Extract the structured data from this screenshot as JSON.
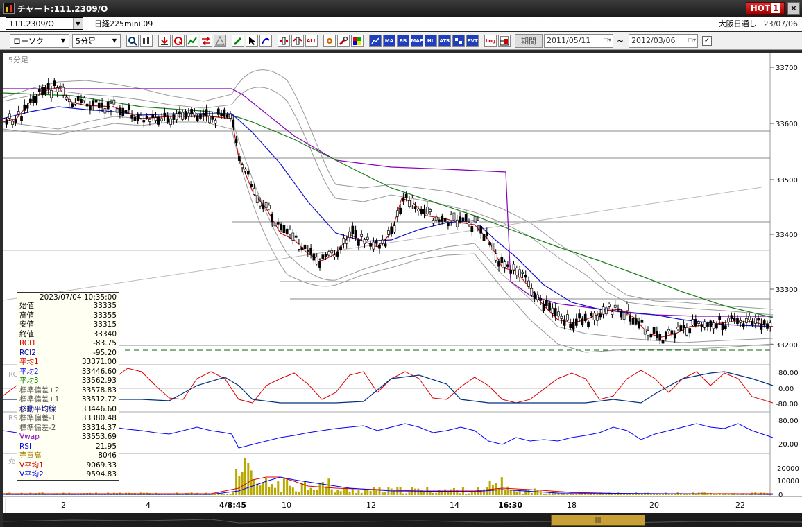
{
  "window": {
    "title": "チャート:111.2309/O",
    "hot_label": "HOT",
    "hot_number": "1",
    "close_glyph": "✕"
  },
  "header": {
    "symbol": "111.2309/O",
    "instrument": "日経225mini 09",
    "session": "大阪日通し",
    "date": "23/07/06"
  },
  "toolbar": {
    "chart_type": "ローソク",
    "interval": "5分足",
    "buttons": [
      "magnifier-icon",
      "bars-icon",
      "download-icon",
      "q-icon",
      "chart-icon",
      "arrows-icon",
      "pen-icon",
      "line-icon",
      "cursor-icon",
      "curve-icon",
      "zoom-in-icon",
      "zoom-out-icon",
      "ALL",
      "gear-icon",
      "wrench-icon",
      "palette-icon",
      "OP",
      "MA",
      "BB",
      "MAE",
      "HL",
      "ATR",
      "PV",
      "PVT",
      "Log",
      "layout-icon"
    ],
    "all_label": "ALL",
    "ma_label": "MA",
    "bb_label": "BB",
    "mae_label": "MAE",
    "hl_label": "HL",
    "atr_label": "ATR",
    "pvt_label": "PVT",
    "log_label": "Log",
    "period_label": "期間",
    "date_from": "2011/05/11",
    "date_to": "2012/03/06",
    "tilde": "~"
  },
  "chart": {
    "interval_label": "5分足",
    "price_ticks": [
      "33700",
      "33600",
      "33500",
      "33400",
      "33300",
      "33200"
    ],
    "osc_ticks": [
      "80.00",
      "0.00",
      "-80.00"
    ],
    "rsi_ticks": [
      "80.00",
      "20.00"
    ],
    "vol_ticks": [
      "20000",
      "10000",
      "0"
    ],
    "x_labels": [
      "2",
      "4",
      "4/8:45",
      "10",
      "12",
      "14",
      "16:30",
      "18",
      "20",
      "22"
    ],
    "osc_label": "RCI",
    "rsi_label": "RSI",
    "vol_label": "売"
  },
  "data_panel": {
    "datetime": "2023/07/04  10:35:00",
    "rows": [
      {
        "label": "始値",
        "value": "33335",
        "color": "#000000"
      },
      {
        "label": "高値",
        "value": "33355",
        "color": "#000000"
      },
      {
        "label": "安値",
        "value": "33315",
        "color": "#000000"
      },
      {
        "label": "終値",
        "value": "33340",
        "color": "#000000"
      },
      {
        "label": "RCI1",
        "value": "-83.75",
        "color": "#d00000"
      },
      {
        "label": "RCI2",
        "value": "-95.20",
        "color": "#0000c0"
      },
      {
        "label": "平均1",
        "value": "33371.00",
        "color": "#d00000"
      },
      {
        "label": "平均2",
        "value": "33446.60",
        "color": "#0000ff"
      },
      {
        "label": "平均3",
        "value": "33562.93",
        "color": "#008000"
      },
      {
        "label": "標準偏差+2",
        "value": "33578.83",
        "color": "#555555"
      },
      {
        "label": "標準偏差+1",
        "value": "33512.72",
        "color": "#555555"
      },
      {
        "label": "移動平均線",
        "value": "33446.60",
        "color": "#000080"
      },
      {
        "label": "標準偏差-1",
        "value": "33380.48",
        "color": "#555555"
      },
      {
        "label": "標準偏差-2",
        "value": "33314.37",
        "color": "#555555"
      },
      {
        "label": "Vwap",
        "value": "33553.69",
        "color": "#8000c0"
      },
      {
        "label": "RSI",
        "value": "21.95",
        "color": "#0000ff"
      },
      {
        "label": "売買高",
        "value": "8046",
        "color": "#a08000"
      },
      {
        "label": "V平均1",
        "value": "9069.33",
        "color": "#d00000"
      },
      {
        "label": "V平均2",
        "value": "9594.83",
        "color": "#0000ff"
      }
    ]
  },
  "scroll": {
    "thumb_glyph": "|||"
  }
}
